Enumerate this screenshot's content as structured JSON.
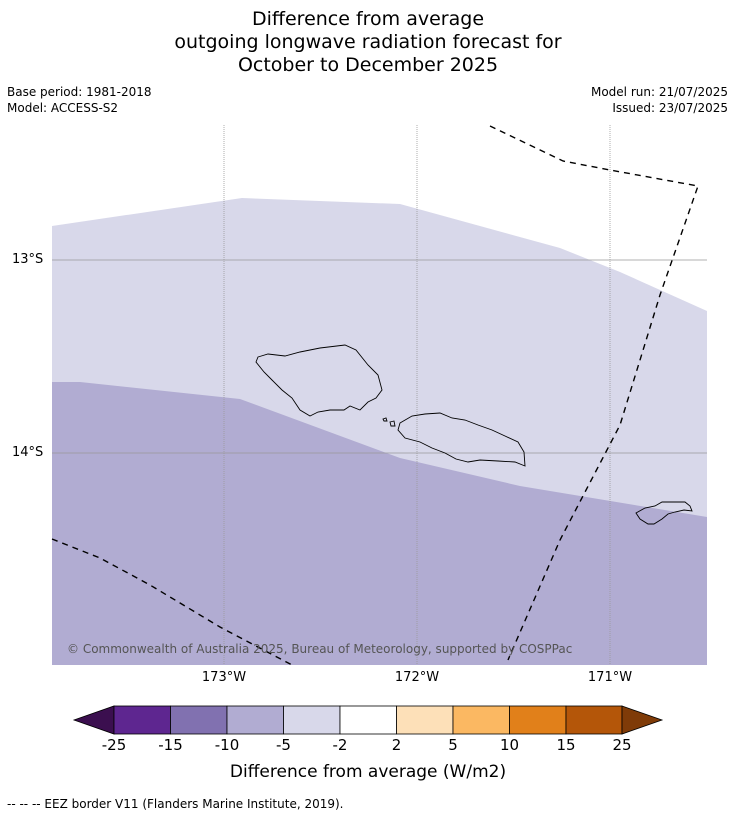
{
  "title": {
    "line1": "Difference from average",
    "line2": "outgoing longwave radiation forecast for",
    "line3": "October to December 2025"
  },
  "meta": {
    "base_period": "Base period: 1981-2018",
    "model": "Model: ACCESS-S2",
    "model_run": "Model run: 21/07/2025",
    "issued": "Issued: 23/07/2025"
  },
  "map": {
    "lat_labels": [
      "13°S",
      "14°S"
    ],
    "lon_labels": [
      "173°W",
      "172°W",
      "171°W"
    ],
    "copyright": "© Commonwealth of Australia 2025, Bureau of Meteorology, supported by COSPPac",
    "colors": {
      "band_light": "#d8d8ea",
      "band_medium": "#b1acd2",
      "gridline": "#999999"
    }
  },
  "colorbar": {
    "title": "Difference from average (W/m2)",
    "tick_labels": [
      "-25",
      "-15",
      "-10",
      "-5",
      "-2",
      "2",
      "5",
      "10",
      "15",
      "25"
    ],
    "colors": [
      "#3b0f4f",
      "#5e2690",
      "#8171b0",
      "#b1acd2",
      "#d8d8ea",
      "#ffffff",
      "#fde0b8",
      "#fbb862",
      "#e1801a",
      "#b45609",
      "#7f3b08"
    ]
  },
  "footer": {
    "legend": "--  --  -- EEZ border V11 (Flanders Marine Institute, 2019)."
  }
}
